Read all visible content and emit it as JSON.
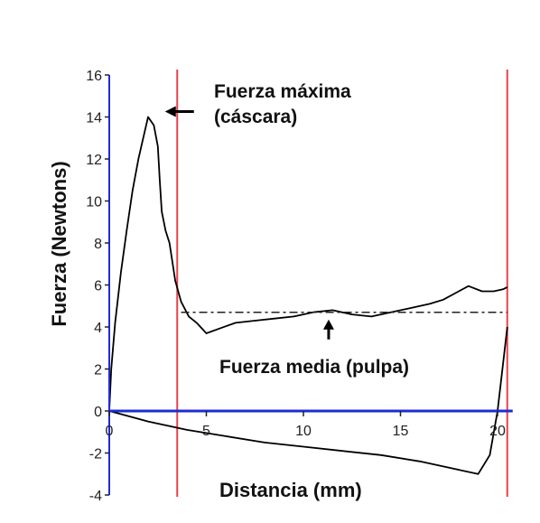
{
  "chart_data": {
    "type": "line",
    "xlabel": "Distancia (mm)",
    "ylabel": "Fuerza (Newtons)",
    "xlim": [
      0,
      20.5
    ],
    "ylim": [
      -4,
      16
    ],
    "x_ticks": [
      "0",
      "5",
      "10",
      "15",
      "20"
    ],
    "y_ticks": [
      "-4",
      "-2",
      "0",
      "2",
      "4",
      "6",
      "8",
      "10",
      "12",
      "14",
      "16"
    ],
    "grid": false,
    "annotations": {
      "peak_line1": "Fuerza máxima",
      "peak_line2": "(cáscara)",
      "mean": "Fuerza media (pulpa)"
    },
    "vertical_markers_x": [
      3.5,
      20.5
    ],
    "mean_force": 4.7,
    "colors": {
      "curve": "#000000",
      "markers": "#e8414a",
      "x_axis": "#1f2bd6",
      "y_axis": "#1f2bd6"
    },
    "series": [
      {
        "values": [
          [
            0.0,
            0.0
          ],
          [
            0.1,
            2.0
          ],
          [
            0.3,
            4.2
          ],
          [
            0.6,
            6.6
          ],
          [
            0.9,
            8.6
          ],
          [
            1.2,
            10.5
          ],
          [
            1.5,
            12.0
          ],
          [
            1.8,
            13.2
          ],
          [
            2.0,
            14.0
          ],
          [
            2.3,
            13.6
          ],
          [
            2.5,
            12.6
          ],
          [
            2.6,
            11.0
          ],
          [
            2.7,
            9.5
          ],
          [
            2.9,
            8.6
          ],
          [
            3.1,
            8.0
          ],
          [
            3.4,
            6.2
          ],
          [
            3.7,
            5.2
          ],
          [
            4.1,
            4.5
          ],
          [
            4.5,
            4.2
          ],
          [
            5.0,
            3.7
          ],
          [
            5.6,
            3.9
          ],
          [
            6.5,
            4.2
          ],
          [
            7.5,
            4.3
          ],
          [
            8.5,
            4.4
          ],
          [
            9.5,
            4.5
          ],
          [
            10.5,
            4.7
          ],
          [
            11.5,
            4.8
          ],
          [
            12.5,
            4.6
          ],
          [
            13.5,
            4.5
          ],
          [
            14.5,
            4.7
          ],
          [
            15.5,
            4.9
          ],
          [
            16.5,
            5.1
          ],
          [
            17.2,
            5.3
          ],
          [
            18.0,
            5.7
          ],
          [
            18.5,
            5.95
          ],
          [
            19.2,
            5.7
          ],
          [
            19.8,
            5.7
          ],
          [
            20.3,
            5.8
          ],
          [
            20.5,
            5.9
          ]
        ]
      },
      {
        "values": [
          [
            0.0,
            0.0
          ],
          [
            2.0,
            -0.5
          ],
          [
            4.0,
            -0.9
          ],
          [
            6.0,
            -1.2
          ],
          [
            8.0,
            -1.5
          ],
          [
            10.0,
            -1.7
          ],
          [
            12.0,
            -1.9
          ],
          [
            14.0,
            -2.1
          ],
          [
            16.0,
            -2.4
          ],
          [
            17.5,
            -2.7
          ],
          [
            19.0,
            -3.0
          ],
          [
            19.6,
            -2.1
          ],
          [
            20.0,
            0.0
          ],
          [
            20.5,
            4.0
          ]
        ]
      }
    ]
  }
}
